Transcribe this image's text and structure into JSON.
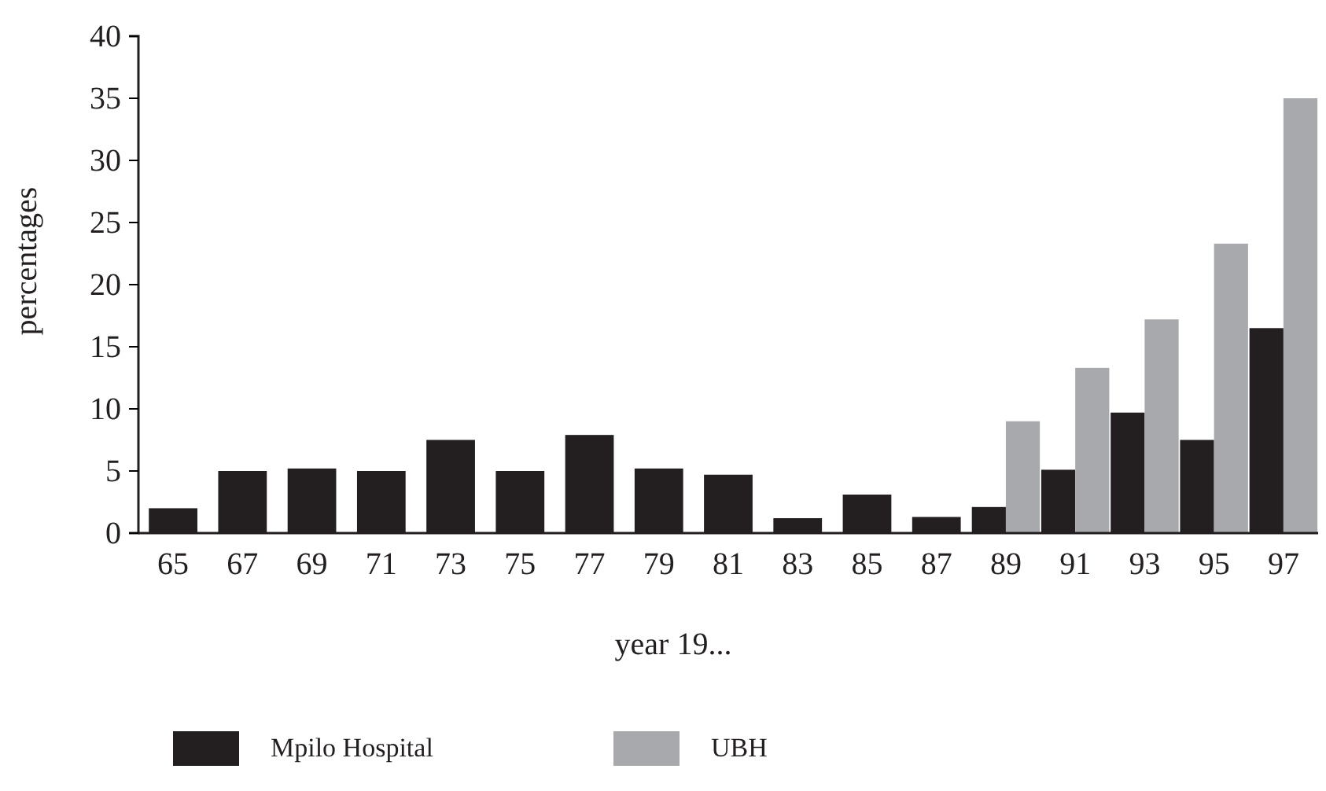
{
  "chart_data": {
    "type": "bar",
    "xlabel": "year 19...",
    "ylabel": "percentages",
    "categories": [
      "65",
      "67",
      "69",
      "71",
      "73",
      "75",
      "77",
      "79",
      "81",
      "83",
      "85",
      "87",
      "89",
      "91",
      "93",
      "95",
      "97"
    ],
    "series": [
      {
        "name": "Mpilo Hospital",
        "color": "#231f20",
        "values": [
          2.0,
          5.0,
          5.2,
          5.0,
          7.5,
          5.0,
          7.9,
          5.2,
          4.7,
          1.2,
          3.1,
          1.3,
          2.1,
          5.1,
          9.7,
          7.5,
          16.5
        ]
      },
      {
        "name": "UBH",
        "color": "#a7a9ac",
        "values": [
          null,
          null,
          null,
          null,
          null,
          null,
          null,
          null,
          null,
          null,
          null,
          null,
          9.0,
          13.3,
          17.2,
          23.3,
          35.0
        ]
      }
    ],
    "ylim": [
      0,
      40
    ],
    "yticks": [
      0,
      5,
      10,
      15,
      20,
      25,
      30,
      35,
      40
    ],
    "grid": false,
    "legend": "bottom"
  }
}
